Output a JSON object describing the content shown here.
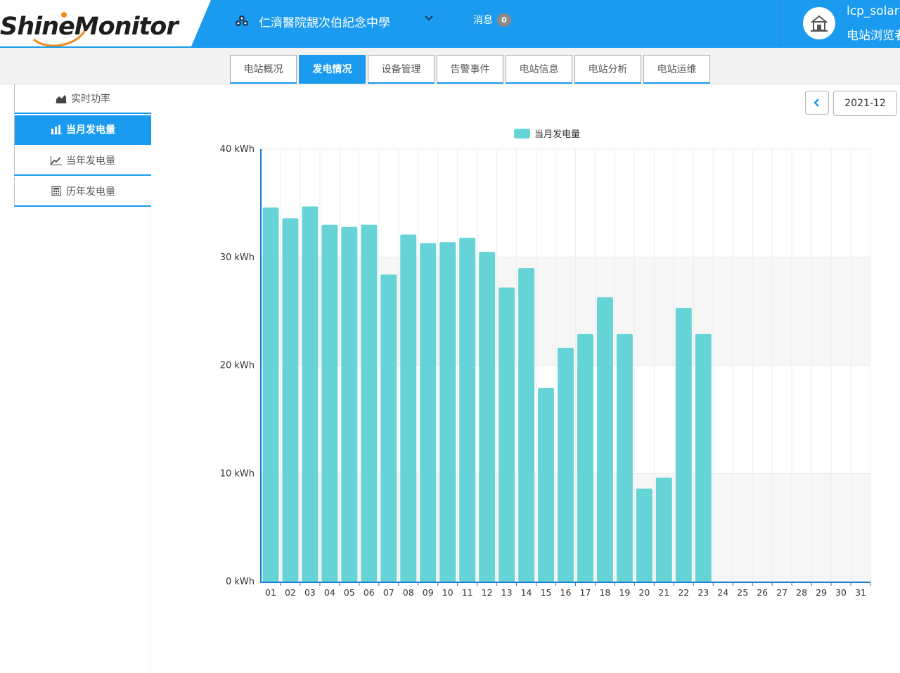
{
  "brand": {
    "logo_text": "ShineMonitor"
  },
  "header": {
    "plant_name": "仁濟醫院靚次伯紀念中學",
    "messages_label": "消息",
    "messages_count": "0",
    "user_name": "lcp_solar",
    "user_role": "电站浏览者"
  },
  "tabs": [
    {
      "label": "电站概况",
      "active": false
    },
    {
      "label": "发电情况",
      "active": true
    },
    {
      "label": "设备管理",
      "active": false
    },
    {
      "label": "告警事件",
      "active": false
    },
    {
      "label": "电站信息",
      "active": false
    },
    {
      "label": "电站分析",
      "active": false
    },
    {
      "label": "电站运维",
      "active": false
    }
  ],
  "sidebar": {
    "items": [
      {
        "label": "实时功率",
        "icon": "area-chart-icon",
        "active": false
      },
      {
        "label": "当月发电量",
        "icon": "bar-chart-icon",
        "active": true
      },
      {
        "label": "当年发电量",
        "icon": "line-chart-icon",
        "active": false
      },
      {
        "label": "历年发电量",
        "icon": "calculator-icon",
        "active": false
      }
    ]
  },
  "date": {
    "value": "2021-12"
  },
  "colors": {
    "brand_blue": "#1a9bf0",
    "bar": "#66d4d6",
    "logo_orange": "#f08a1c"
  },
  "chart_data": {
    "type": "bar",
    "legend": [
      "当月发电量"
    ],
    "categories": [
      "01",
      "02",
      "03",
      "04",
      "05",
      "06",
      "07",
      "08",
      "09",
      "10",
      "11",
      "12",
      "13",
      "14",
      "15",
      "16",
      "17",
      "18",
      "19",
      "20",
      "21",
      "22",
      "23",
      "24",
      "25",
      "26",
      "27",
      "28",
      "29",
      "30",
      "31"
    ],
    "series": [
      {
        "name": "当月发电量",
        "values": [
          34.6,
          33.6,
          34.7,
          33.0,
          32.8,
          33.0,
          28.4,
          32.1,
          31.3,
          31.4,
          31.8,
          30.5,
          27.2,
          29.0,
          17.9,
          21.6,
          22.9,
          26.3,
          22.9,
          8.6,
          9.6,
          25.3,
          22.9,
          null,
          null,
          null,
          null,
          null,
          null,
          null,
          null
        ]
      }
    ],
    "y_ticks": [
      "0 kWh",
      "10 kWh",
      "20 kWh",
      "30 kWh",
      "40 kWh"
    ],
    "ylim": [
      0,
      40
    ],
    "unit": "kWh",
    "legend_position": "top-center",
    "grid": true
  }
}
